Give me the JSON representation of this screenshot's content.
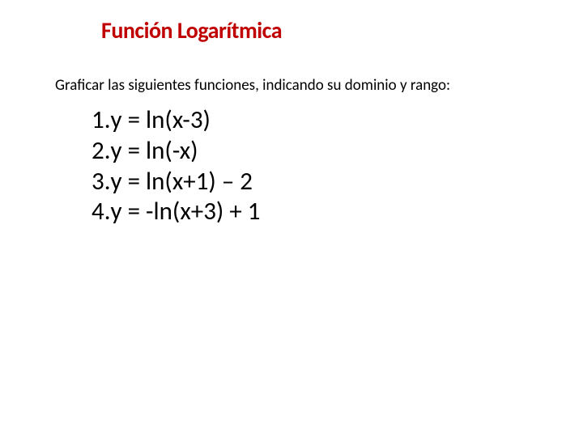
{
  "title": "Función Logarítmica",
  "subtitle": "Graficar las siguientes funciones, indicando su dominio y rango:",
  "items": [
    {
      "num": "1.",
      "eq": "y = ln(x-3)"
    },
    {
      "num": "2.",
      "eq": "y = ln(-x)"
    },
    {
      "num": "3.",
      "eq": "y = ln(x+1) – 2"
    },
    {
      "num": "4.",
      "eq": "y = -ln(x+3) + 1"
    }
  ],
  "colors": {
    "title": "#c00000",
    "text": "#000000",
    "background": "#ffffff"
  },
  "fontsizes": {
    "title_pt": 28,
    "subtitle_pt": 19,
    "list_pt": 31
  }
}
